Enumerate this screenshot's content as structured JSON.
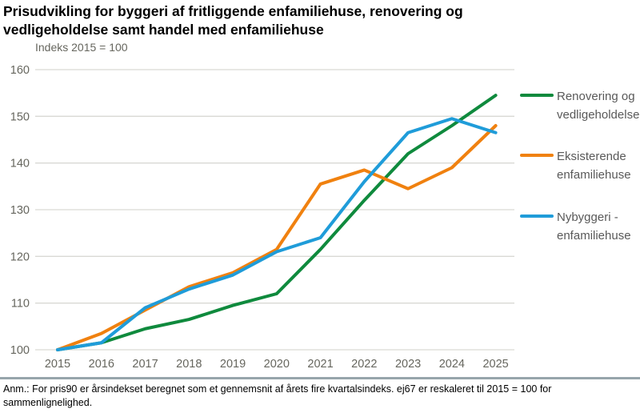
{
  "header": {
    "title": "Prisudvikling for byggeri af fritliggende enfamiliehuse, renovering og vedligeholdelse samt handel med enfamiliehuse",
    "subtitle": "Indeks 2015 = 100"
  },
  "chart_data": {
    "type": "line",
    "title": "Prisudvikling for byggeri af fritliggende enfamiliehuse, renovering og vedligeholdelse samt handel med enfamiliehuse",
    "subtitle": "Indeks 2015 = 100",
    "categories": [
      "2015",
      "2016",
      "2017",
      "2018",
      "2019",
      "2020",
      "2021",
      "2022",
      "2023",
      "2024",
      "2025"
    ],
    "series": [
      {
        "name": "Renovering og vedligeholdelse",
        "color": "#0f8a3d",
        "values": [
          100,
          101.5,
          104.5,
          106.5,
          109.5,
          112,
          121.5,
          132,
          142,
          148,
          154.5
        ]
      },
      {
        "name": "Eksisterende enfamiliehuse",
        "color": "#f0810f",
        "values": [
          100,
          103.5,
          108.5,
          113.5,
          116.5,
          121.5,
          135.5,
          138.5,
          134.5,
          139,
          148
        ]
      },
      {
        "name": "Nybyggeri - enfamiliehuse",
        "color": "#1f9cd9",
        "values": [
          100,
          101.5,
          109,
          113,
          116,
          121,
          124,
          136,
          146.5,
          149.5,
          146.5
        ]
      }
    ],
    "yticks": [
      100,
      110,
      120,
      130,
      140,
      150,
      160
    ],
    "ylim": [
      100,
      160
    ],
    "xlabel": "",
    "ylabel": "Indeks 2015 = 100",
    "grid": true,
    "legend_position": "right"
  },
  "footer": {
    "note": "Anm.: For pris90 er årsindekset beregnet som et gennemsnit af årets fire kvartalsindeks. ej67 er reskaleret til 2015 = 100 for sammenlignelighed."
  },
  "colors": {
    "grid": "#d9d9d4",
    "axis_text": "#66665e",
    "legend_text": "#595959",
    "divider": "#97a5ab",
    "title": "#000000"
  }
}
